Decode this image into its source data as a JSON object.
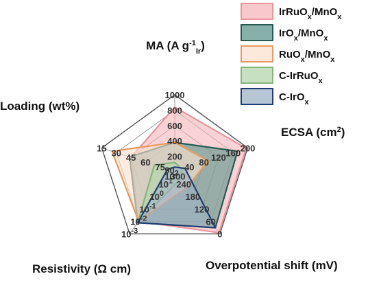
{
  "chart_data": {
    "type": "radar",
    "axes": [
      {
        "key": "ma",
        "label": "MA (A g",
        "sup": "-1",
        "sub": "Ir",
        "tail": ")",
        "ticks": [
          "1000",
          "800",
          "600",
          "400",
          "200"
        ]
      },
      {
        "key": "ecsa",
        "label": "ECSA (cm",
        "sup": "2",
        "tail": ")",
        "ticks": [
          "200",
          "160",
          "120",
          "80",
          "40"
        ]
      },
      {
        "key": "overpotential",
        "label": "Overpotential shift (mV)",
        "ticks": [
          "0",
          "60",
          "120",
          "180",
          "240",
          "300"
        ]
      },
      {
        "key": "resistivity",
        "label": "Resistivity (Ω cm)",
        "ticks": [
          "10-3",
          "10-2",
          "10-1",
          "100",
          "101",
          "102"
        ]
      },
      {
        "key": "loading",
        "label": "Loading (wt%)",
        "ticks": [
          "15",
          "30",
          "45",
          "60",
          "75",
          "90"
        ]
      }
    ],
    "series": [
      {
        "name": "IrRuOx/MnOx",
        "base": "IrRuO",
        "sub": "x",
        "mid": "/MnO",
        "sub2": "x",
        "fill": "#f4b6bb",
        "stroke": "#e8959c",
        "values": [
          0.84,
          0.98,
          0.98,
          0.8,
          0.6
        ]
      },
      {
        "name": "IrOx/MnOx",
        "base": "IrO",
        "sub": "x",
        "mid": "/MnO",
        "sub2": "x",
        "fill": "#5f968d",
        "stroke": "#245a52",
        "values": [
          0.38,
          0.86,
          0.9,
          0.82,
          0.62
        ]
      },
      {
        "name": "RuOx/MnOx",
        "base": "RuO",
        "sub": "x",
        "mid": "/MnO",
        "sub2": "x",
        "fill": "#fbe2cf",
        "stroke": "#e99a5c",
        "values": [
          0.38,
          0.46,
          0.26,
          0.8,
          0.86
        ]
      },
      {
        "name": "C-IrRuOx",
        "base": "C-IrRuO",
        "sub": "x",
        "mid": "",
        "sub2": "",
        "fill": "#b5d6ae",
        "stroke": "#86b57b",
        "values": [
          0.12,
          0.1,
          0.12,
          0.82,
          0.28
        ]
      },
      {
        "name": "C-IrOx",
        "base": "C-IrO",
        "sub": "x",
        "mid": "",
        "sub2": "",
        "fill": "#9fb3c6",
        "stroke": "#1f3d70",
        "values": [
          0.06,
          0.14,
          0.9,
          0.82,
          0.1
        ]
      }
    ],
    "grid": true,
    "legend": "top-right"
  }
}
